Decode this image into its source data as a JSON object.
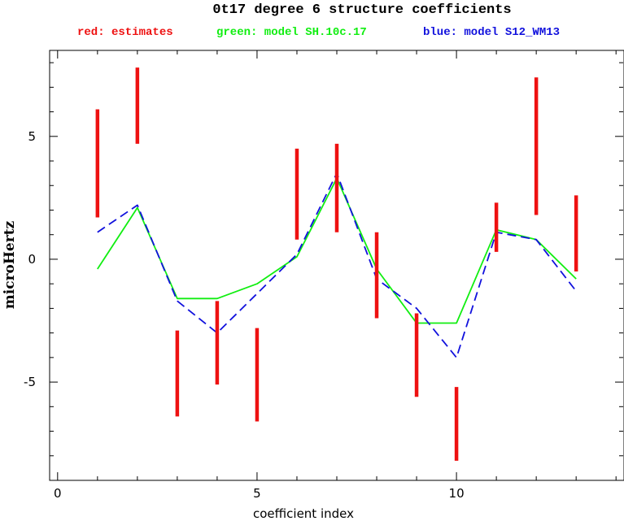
{
  "chart_data": {
    "type": "line",
    "title": "0t17 degree 6 structure coefficients",
    "legend": [
      {
        "text": "red: estimates",
        "color": "#ee1111"
      },
      {
        "text": "green: model SH.10c.17",
        "color": "#11ee11"
      },
      {
        "text": "blue: model S12_WM13",
        "color": "#1111dd"
      }
    ],
    "legend_position": "top",
    "xlabel": "coefficient index",
    "ylabel": "microHertz",
    "xlim": [
      -0.2,
      14.2
    ],
    "ylim": [
      -9,
      8.5
    ],
    "x_ticks": [
      0,
      5,
      10
    ],
    "y_ticks": [
      -5,
      0,
      5
    ],
    "grid": false,
    "estimates": {
      "color": "#ee1111",
      "x": [
        1,
        2,
        3,
        4,
        5,
        6,
        7,
        8,
        9,
        10,
        11,
        12,
        13
      ],
      "low": [
        1.7,
        4.7,
        -6.4,
        -5.1,
        -6.6,
        0.8,
        1.1,
        -2.4,
        -5.6,
        -8.2,
        0.3,
        1.8,
        -0.5
      ],
      "high": [
        6.1,
        7.8,
        -2.9,
        -1.7,
        -2.8,
        4.5,
        4.7,
        1.1,
        -2.2,
        -5.2,
        2.3,
        7.4,
        2.6
      ]
    },
    "series": [
      {
        "name": "model SH.10c.17",
        "color": "#11ee11",
        "dash": false,
        "x": [
          1,
          2,
          3,
          4,
          5,
          6,
          7,
          8,
          9,
          10,
          11,
          12,
          13
        ],
        "values": [
          -0.4,
          2.1,
          -1.6,
          -1.6,
          -1.0,
          0.1,
          3.3,
          -0.4,
          -2.6,
          -2.6,
          1.2,
          0.8,
          -0.8
        ]
      },
      {
        "name": "model S12_WM13",
        "color": "#1111dd",
        "dash": true,
        "x": [
          1,
          2,
          3,
          4,
          5,
          6,
          7,
          8,
          9,
          10,
          11,
          12,
          13
        ],
        "values": [
          1.1,
          2.2,
          -1.7,
          -3.0,
          -1.4,
          0.2,
          3.5,
          -0.8,
          -2.0,
          -4.0,
          1.1,
          0.8,
          -1.3
        ]
      }
    ]
  }
}
